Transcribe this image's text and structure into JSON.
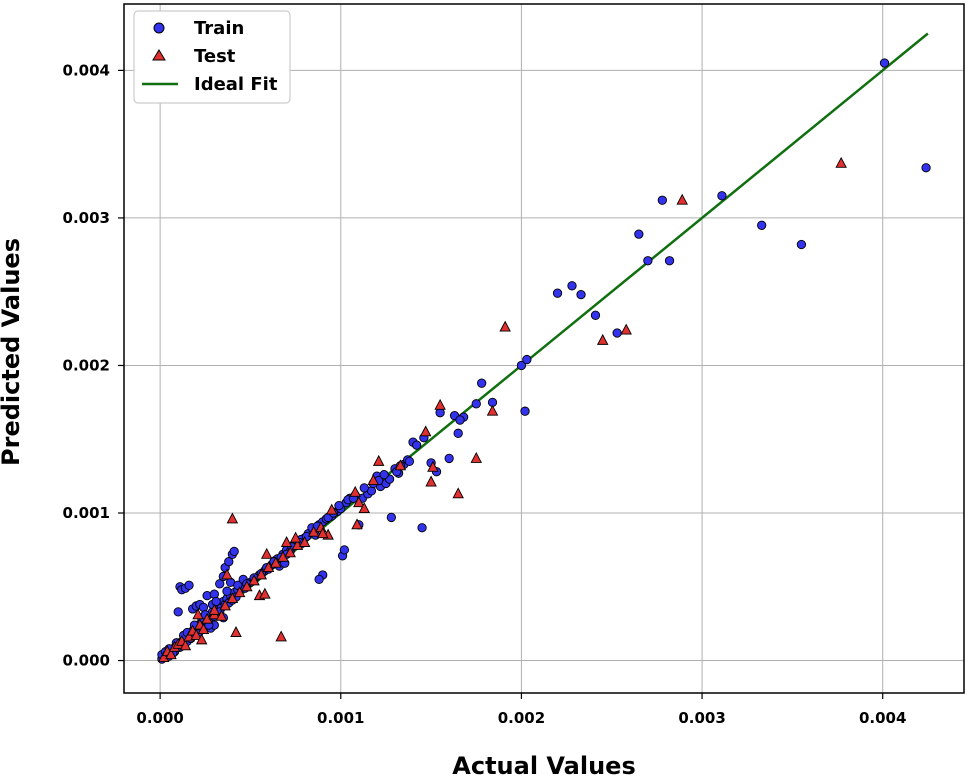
{
  "colors": {
    "train": "#3333ee",
    "test": "#e03030",
    "ideal": "#107010",
    "grid": "#b0b0b0",
    "marker_edge": "#000000"
  },
  "chart_data": {
    "type": "scatter",
    "title": "",
    "xlabel": "Actual Values",
    "ylabel": "Predicted Values",
    "xlim": [
      -0.0002,
      0.00445
    ],
    "ylim": [
      -0.00022,
      0.00445
    ],
    "xticks": [
      0.0,
      0.001,
      0.002,
      0.003,
      0.004
    ],
    "yticks": [
      0.0,
      0.001,
      0.002,
      0.003,
      0.004
    ],
    "xtick_labels": [
      "0.000",
      "0.001",
      "0.002",
      "0.003",
      "0.004"
    ],
    "ytick_labels": [
      "0.000",
      "0.001",
      "0.002",
      "0.003",
      "0.004"
    ],
    "grid": true,
    "legend_position": "top-left",
    "series": [
      {
        "name": "Train",
        "marker": "circle",
        "points": [
          [
            1e-05,
            1e-05
          ],
          [
            2e-05,
            3e-05
          ],
          [
            3e-05,
            4e-05
          ],
          [
            4e-05,
            5e-05
          ],
          [
            5e-05,
            3e-05
          ],
          [
            6e-05,
            7e-05
          ],
          [
            7e-05,
            8e-05
          ],
          [
            8e-05,
            6e-05
          ],
          [
            9e-05,
            0.0001
          ],
          [
            0.0001,
            9e-05
          ],
          [
            0.00011,
            0.00012
          ],
          [
            0.00012,
            0.00011
          ],
          [
            0.00013,
            0.00014
          ],
          [
            0.00014,
            0.00016
          ],
          [
            0.00015,
            0.00013
          ],
          [
            0.00016,
            0.00018
          ],
          [
            0.00017,
            0.00017
          ],
          [
            0.00018,
            0.0002
          ],
          [
            0.00019,
            0.00019
          ],
          [
            0.0002,
            0.00022
          ],
          [
            0.00021,
            0.00024
          ],
          [
            0.00022,
            0.0002
          ],
          [
            0.00023,
            0.00026
          ],
          [
            0.00024,
            0.00025
          ],
          [
            0.00025,
            0.00027
          ],
          [
            0.00026,
            0.00029
          ],
          [
            0.00027,
            0.00028
          ],
          [
            0.00028,
            0.00031
          ],
          [
            0.00029,
            0.00033
          ],
          [
            0.0003,
            0.0003
          ],
          [
            0.00031,
            0.00035
          ],
          [
            0.00032,
            0.00034
          ],
          [
            0.00033,
            0.00037
          ],
          [
            0.00034,
            0.00036
          ],
          [
            0.00035,
            0.0004
          ],
          [
            0.00036,
            0.00038
          ],
          [
            0.00037,
            0.00042
          ],
          [
            0.00038,
            0.00039
          ],
          [
            0.00039,
            0.00044
          ],
          [
            0.0004,
            0.00041
          ],
          [
            0.00041,
            0.00046
          ],
          [
            0.00042,
            0.00043
          ],
          [
            0.00043,
            0.00048
          ],
          [
            0.00045,
            0.0005
          ],
          [
            0.00047,
            0.00049
          ],
          [
            0.0005,
            0.00053
          ],
          [
            0.00052,
            0.00055
          ],
          [
            0.00055,
            0.00058
          ],
          [
            0.00058,
            0.00061
          ],
          [
            0.0006,
            0.00062
          ],
          [
            0.00062,
            0.00065
          ],
          [
            0.00064,
            0.00068
          ],
          [
            0.00066,
            0.00064
          ],
          [
            0.00068,
            0.00072
          ],
          [
            0.0007,
            0.00075
          ],
          [
            0.00072,
            0.00074
          ],
          [
            0.00075,
            0.0008
          ],
          [
            0.00078,
            0.00079
          ],
          [
            0.0008,
            0.00083
          ],
          [
            0.00082,
            0.00086
          ],
          [
            0.00085,
            0.00088
          ],
          [
            0.00088,
            0.00092
          ],
          [
            0.0009,
            0.00094
          ],
          [
            0.00092,
            0.00096
          ],
          [
            0.00095,
            0.00098
          ],
          [
            0.00098,
            0.00101
          ],
          [
            0.001,
            0.00103
          ],
          [
            0.00103,
            0.00107
          ],
          [
            0.00105,
            0.0011
          ],
          [
            0.00108,
            0.00112
          ],
          [
            0.0001,
            0.00033
          ],
          [
            0.00011,
            0.0005
          ],
          [
            0.00012,
            0.00048
          ],
          [
            0.00014,
            0.00049
          ],
          [
            0.00016,
            0.00051
          ],
          [
            0.00018,
            0.00035
          ],
          [
            0.0002,
            0.00037
          ],
          [
            0.00022,
            0.00038
          ],
          [
            0.00024,
            0.00036
          ],
          [
            0.00026,
            0.00044
          ],
          [
            0.0003,
            0.00045
          ],
          [
            0.00033,
            0.00052
          ],
          [
            0.00035,
            0.00057
          ],
          [
            0.00036,
            0.00063
          ],
          [
            0.00038,
            0.00067
          ],
          [
            0.0004,
            0.00072
          ],
          [
            0.00041,
            0.00074
          ],
          [
            0.00028,
            0.00022
          ],
          [
            0.0003,
            0.00024
          ],
          [
            0.00035,
            0.00029
          ],
          [
            0.00065,
            0.00069
          ],
          [
            0.0007,
            0.00072
          ],
          [
            0.00074,
            0.00078
          ],
          [
            0.00078,
            0.00082
          ],
          [
            0.00084,
            0.0009
          ],
          [
            0.00086,
            0.00085
          ],
          [
            0.0009,
            0.00058
          ],
          [
            0.00088,
            0.00055
          ],
          [
            0.00101,
            0.00071
          ],
          [
            0.00102,
            0.00075
          ],
          [
            0.0011,
            0.00092
          ],
          [
            0.00112,
            0.0011
          ],
          [
            0.00115,
            0.00113
          ],
          [
            0.00117,
            0.00115
          ],
          [
            0.0012,
            0.00125
          ],
          [
            0.00122,
            0.00118
          ],
          [
            0.00125,
            0.0012
          ],
          [
            0.00127,
            0.00123
          ],
          [
            0.0013,
            0.0013
          ],
          [
            0.00132,
            0.00127
          ],
          [
            0.00135,
            0.00133
          ],
          [
            0.00137,
            0.00136
          ],
          [
            0.0014,
            0.00148
          ],
          [
            0.00142,
            0.00146
          ],
          [
            0.00145,
            0.0009
          ],
          [
            0.00128,
            0.00097
          ],
          [
            0.0015,
            0.00134
          ],
          [
            0.00153,
            0.00128
          ],
          [
            0.00155,
            0.00168
          ],
          [
            0.0016,
            0.00137
          ],
          [
            0.00165,
            0.00154
          ],
          [
            0.00168,
            0.00165
          ],
          [
            0.00175,
            0.00174
          ],
          [
            0.00178,
            0.00188
          ],
          [
            0.00184,
            0.00175
          ],
          [
            0.002,
            0.002
          ],
          [
            0.00203,
            0.00204
          ],
          [
            0.00202,
            0.00169
          ],
          [
            0.0022,
            0.00249
          ],
          [
            0.00228,
            0.00254
          ],
          [
            0.00233,
            0.00248
          ],
          [
            0.00241,
            0.00234
          ],
          [
            0.00253,
            0.00222
          ],
          [
            0.00265,
            0.00289
          ],
          [
            0.0027,
            0.00271
          ],
          [
            0.00278,
            0.00312
          ],
          [
            0.00282,
            0.00271
          ],
          [
            0.00311,
            0.00315
          ],
          [
            0.00333,
            0.00295
          ],
          [
            0.00355,
            0.00282
          ],
          [
            0.00401,
            0.00405
          ],
          [
            0.00424,
            0.00334
          ],
          [
            1e-05,
            4e-05
          ],
          [
            3e-05,
            6e-05
          ],
          [
            5e-05,
            8e-05
          ],
          [
            7e-05,
            5e-05
          ],
          [
            9e-05,
            0.00012
          ],
          [
            0.00011,
            9e-05
          ],
          [
            0.00013,
            0.00017
          ],
          [
            0.00015,
            0.00019
          ],
          [
            0.00017,
            0.00015
          ],
          [
            0.00019,
            0.00024
          ],
          [
            0.00021,
            0.00018
          ],
          [
            0.00023,
            0.00029
          ],
          [
            0.00025,
            0.00031
          ],
          [
            0.00027,
            0.00024
          ],
          [
            0.00029,
            0.00038
          ],
          [
            0.00031,
            0.0004
          ],
          [
            0.00033,
            0.00033
          ],
          [
            0.00037,
            0.00047
          ],
          [
            0.00039,
            0.00053
          ],
          [
            0.00043,
            0.00051
          ],
          [
            0.00046,
            0.00055
          ],
          [
            0.00048,
            0.00052
          ],
          [
            0.00052,
            0.00056
          ],
          [
            0.00056,
            0.00059
          ],
          [
            0.00059,
            0.00063
          ],
          [
            0.00063,
            0.00067
          ],
          [
            0.00067,
            0.0007
          ],
          [
            0.00069,
            0.00066
          ],
          [
            0.00073,
            0.00077
          ],
          [
            0.00077,
            0.0008
          ],
          [
            0.00081,
            0.00084
          ],
          [
            0.00087,
            0.00091
          ],
          [
            0.00093,
            0.00097
          ],
          [
            0.00096,
            0.001
          ],
          [
            0.00099,
            0.00105
          ],
          [
            0.00104,
            0.00109
          ],
          [
            0.00107,
            0.0011
          ],
          [
            0.00113,
            0.00117
          ],
          [
            0.00118,
            0.0012
          ],
          [
            0.00121,
            0.00122
          ],
          [
            0.00124,
            0.00126
          ],
          [
            0.00131,
            0.00128
          ],
          [
            0.00133,
            0.00132
          ],
          [
            0.00138,
            0.00135
          ],
          [
            0.00146,
            0.00151
          ],
          [
            0.00163,
            0.00166
          ],
          [
            0.00166,
            0.00163
          ]
        ]
      },
      {
        "name": "Test",
        "marker": "triangle",
        "points": [
          [
            2e-05,
            2e-05
          ],
          [
            4e-05,
            6e-05
          ],
          [
            6e-05,
            4e-05
          ],
          [
            8e-05,
            9e-05
          ],
          [
            0.0001,
            0.00011
          ],
          [
            0.00012,
            0.00013
          ],
          [
            0.00014,
            0.0001
          ],
          [
            0.00016,
            0.00016
          ],
          [
            0.00018,
            0.0002
          ],
          [
            0.0002,
            0.00017
          ],
          [
            0.00022,
            0.00024
          ],
          [
            0.00024,
            0.00021
          ],
          [
            0.00026,
            0.00028
          ],
          [
            0.0003,
            0.00031
          ],
          [
            0.00034,
            0.0003
          ],
          [
            0.00036,
            0.00037
          ],
          [
            0.0004,
            0.00042
          ],
          [
            0.00044,
            0.00046
          ],
          [
            0.00048,
            0.0005
          ],
          [
            0.00052,
            0.00054
          ],
          [
            0.00056,
            0.00058
          ],
          [
            0.0006,
            0.00063
          ],
          [
            0.00064,
            0.00066
          ],
          [
            0.00068,
            0.0007
          ],
          [
            0.00072,
            0.00073
          ],
          [
            0.00076,
            0.00078
          ],
          [
            0.0008,
            0.0008
          ],
          [
            0.00085,
            0.00087
          ],
          [
            0.00089,
            0.0009
          ],
          [
            0.00093,
            0.00085
          ],
          [
            0.00021,
            0.00031
          ],
          [
            0.00023,
            0.00014
          ],
          [
            0.0003,
            0.00034
          ],
          [
            0.00037,
            0.00058
          ],
          [
            0.0004,
            0.00096
          ],
          [
            0.00042,
            0.00019
          ],
          [
            0.00055,
            0.00044
          ],
          [
            0.00058,
            0.00045
          ],
          [
            0.00059,
            0.00072
          ],
          [
            0.00067,
            0.00016
          ],
          [
            0.0007,
            0.0008
          ],
          [
            0.00075,
            0.00083
          ],
          [
            0.0009,
            0.00086
          ],
          [
            0.00095,
            0.00102
          ],
          [
            0.00108,
            0.00114
          ],
          [
            0.00109,
            0.00092
          ],
          [
            0.0011,
            0.00107
          ],
          [
            0.00113,
            0.00103
          ],
          [
            0.00118,
            0.00122
          ],
          [
            0.00121,
            0.00135
          ],
          [
            0.00133,
            0.00132
          ],
          [
            0.00147,
            0.00155
          ],
          [
            0.0015,
            0.00121
          ],
          [
            0.00151,
            0.00131
          ],
          [
            0.00155,
            0.00173
          ],
          [
            0.00165,
            0.00113
          ],
          [
            0.00175,
            0.00137
          ],
          [
            0.00184,
            0.00169
          ],
          [
            0.00191,
            0.00226
          ],
          [
            0.00245,
            0.00217
          ],
          [
            0.00258,
            0.00224
          ],
          [
            0.00289,
            0.00312
          ],
          [
            0.00377,
            0.00337
          ]
        ]
      },
      {
        "name": "Ideal Fit",
        "marker": "line",
        "points": [
          [
            0.0,
            0.0
          ],
          [
            0.00425,
            0.00425
          ]
        ]
      }
    ]
  }
}
